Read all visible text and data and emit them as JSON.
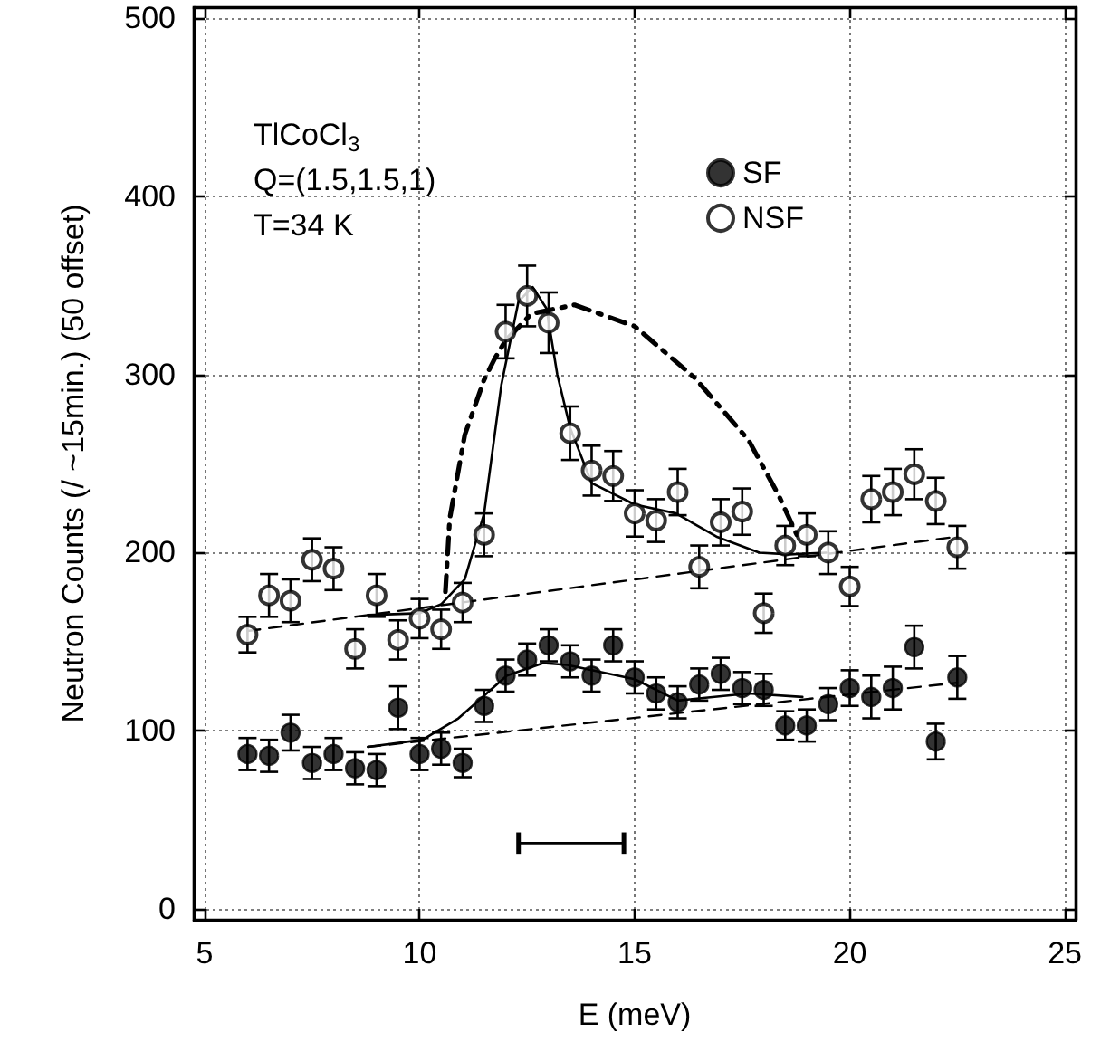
{
  "chart_data": {
    "type": "scatter",
    "xlabel": "E (meV)",
    "ylabel": "Neutron Counts (/ ~15min.) (50 offset)",
    "annotations": [
      "TlCoCl$_{3}$",
      "Q=(1.5,1.5,1)",
      "T=34 K"
    ],
    "xlim": [
      4.75,
      25.25
    ],
    "xticks": [
      5,
      10,
      15,
      20,
      25
    ],
    "ylim": [
      -6,
      506
    ],
    "yticks": [
      0,
      100,
      200,
      300,
      400,
      500
    ],
    "grid": true,
    "legend": "top right",
    "x": [
      6,
      6.5,
      7,
      7.5,
      8,
      8.5,
      9,
      9.5,
      10,
      10.5,
      11,
      11.5,
      12,
      12.5,
      13,
      13.5,
      14,
      14.5,
      15,
      15.5,
      16,
      16.5,
      17,
      17.5,
      18,
      18.5,
      19,
      19.5,
      20,
      20.5,
      21,
      21.5,
      22,
      22.5
    ],
    "series": [
      {
        "name": "SF",
        "color": "#000000",
        "marker": "circle",
        "values": [
          87,
          86,
          99,
          82,
          87,
          79,
          78,
          113,
          87,
          90,
          82,
          114,
          131,
          140,
          148,
          139,
          131,
          148,
          130,
          121,
          116,
          126,
          132,
          124,
          123,
          103,
          103,
          115,
          124,
          119,
          124,
          147,
          94,
          130
        ],
        "errors": [
          9,
          9,
          10,
          9,
          9,
          9,
          9,
          12,
          9,
          9,
          8,
          9,
          9,
          9,
          9,
          9,
          9,
          9,
          9,
          9,
          9,
          9,
          9,
          9,
          9,
          8,
          9,
          9,
          10,
          12,
          12,
          12,
          10,
          12
        ]
      },
      {
        "name": "NSF",
        "color": "#000000",
        "marker": "open_circle",
        "values": [
          154,
          176,
          173,
          196,
          191,
          146,
          176,
          151,
          163,
          157,
          172,
          210,
          324,
          344,
          329,
          267,
          246,
          243,
          222,
          218,
          234,
          192,
          217,
          223,
          166,
          204,
          210,
          200,
          181,
          230,
          234,
          244,
          229,
          203
        ],
        "errors": [
          10,
          12,
          12,
          12,
          12,
          11,
          12,
          11,
          11,
          11,
          11,
          12,
          15,
          17,
          17,
          15,
          14,
          14,
          13,
          12,
          13,
          12,
          13,
          13,
          11,
          11,
          12,
          12,
          11,
          13,
          13,
          14,
          13,
          12
        ]
      },
      {
        "type": "line",
        "color": "#000000",
        "marker": "none",
        "line_style": "solid",
        "x": [
          8.8,
          10.07,
          10.9,
          12.03,
          12.87,
          13.43,
          15,
          16,
          17.65,
          18.9
        ],
        "values": [
          91,
          95,
          107,
          131,
          138,
          137,
          129,
          117,
          121,
          119
        ]
      },
      {
        "type": "line",
        "color": "#000000",
        "marker": "none",
        "line_style": "dashed",
        "x": [
          8.8,
          22.5
        ],
        "values": [
          91,
          127
        ]
      },
      {
        "type": "line",
        "color": "#000000",
        "marker": "none",
        "line_style": "solid",
        "x": [
          8.8,
          10,
          10.5,
          11.05,
          11.5,
          11.9,
          12.3,
          12.63,
          12.95,
          13.2,
          13.5,
          14,
          15,
          15.96,
          16.9,
          17.9,
          18.6,
          19.45
        ],
        "values": [
          165,
          166,
          171,
          185,
          222,
          294,
          341,
          349,
          337,
          300,
          270,
          239,
          227,
          222,
          209,
          200,
          199,
          200
        ]
      },
      {
        "type": "line",
        "color": "#000000",
        "marker": "none",
        "line_style": "dashed",
        "x": [
          6,
          22.5
        ],
        "values": [
          156,
          209
        ]
      },
      {
        "type": "line",
        "color": "#000000",
        "marker": "none",
        "line_style": "dashdot",
        "x": [
          10.6,
          10.7,
          11.05,
          11.5,
          11.75,
          12,
          12.6,
          13.6,
          15,
          16.4,
          17.65,
          18.35,
          18.77
        ],
        "values": [
          178,
          219,
          266,
          297,
          309,
          319,
          334,
          339,
          327,
          298,
          263,
          232,
          210
        ]
      },
      {
        "type": "line",
        "color": "#000000",
        "marker": "none",
        "line_style": "solid",
        "x": [
          12.3,
          14.75
        ],
        "values": [
          37,
          37
        ],
        "errors": [
          6,
          6
        ]
      }
    ]
  }
}
